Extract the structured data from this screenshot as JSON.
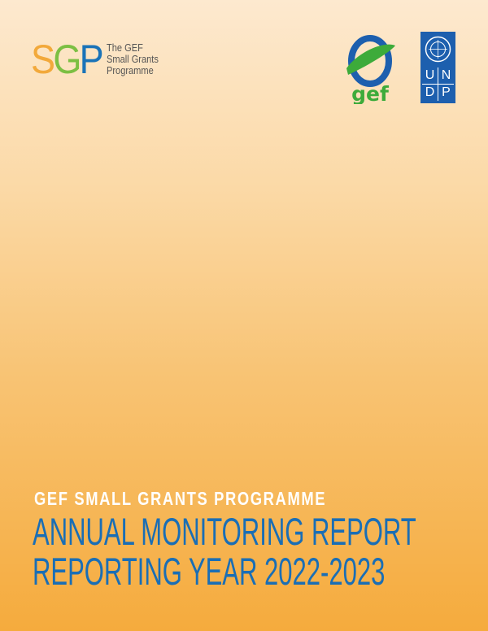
{
  "logos": {
    "sgp": {
      "letters": [
        "S",
        "G",
        "P"
      ],
      "text_lines": [
        "The GEF",
        "Small Grants",
        "Programme"
      ]
    },
    "gef": {
      "text": "gef"
    },
    "undp": {
      "letters": [
        "U",
        "N",
        "D",
        "P"
      ]
    }
  },
  "cover": {
    "subtitle": "GEF SMALL GRANTS PROGRAMME",
    "title_line1": "ANNUAL MONITORING REPORT",
    "title_line2": "REPORTING YEAR 2022-2023"
  },
  "colors": {
    "title": "#1a6eb5",
    "subtitle": "#ffffff",
    "background_top": "#fde9cf",
    "background_bottom": "#f5ab3d"
  }
}
